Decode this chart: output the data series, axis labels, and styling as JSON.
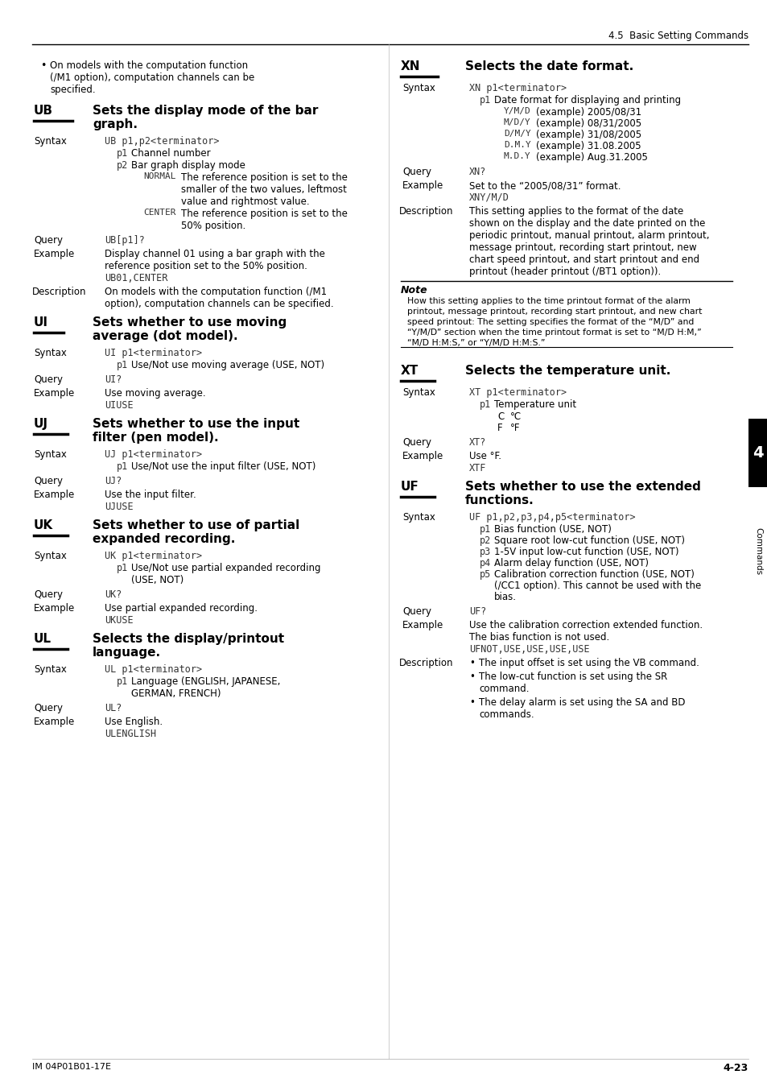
{
  "page_header": "4.5  Basic Setting Commands",
  "footer_left": "IM 04P01B01-17E",
  "footer_right": "4-23",
  "tab_label": "4",
  "tab_sub": "Commands",
  "bg_color": "#ffffff"
}
